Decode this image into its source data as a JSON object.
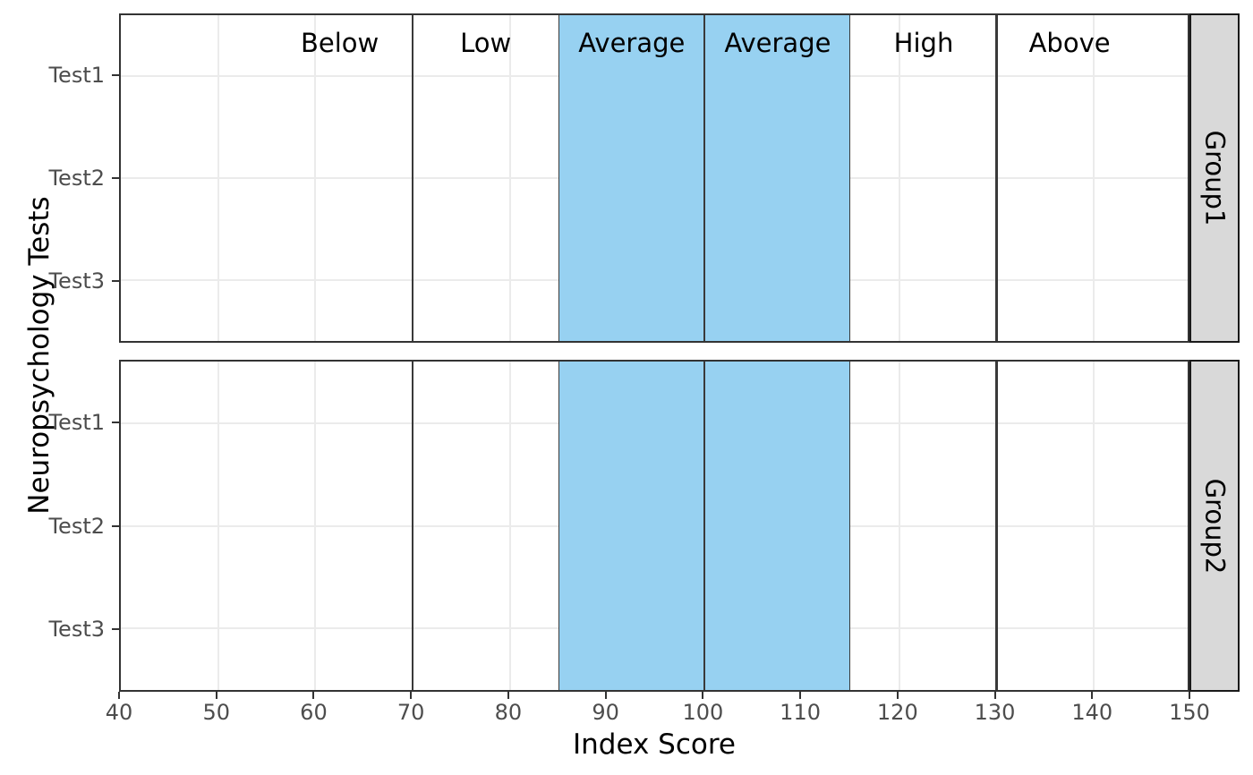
{
  "chart_data": {
    "type": "band-annotation",
    "title": "",
    "xlabel": "Index Score",
    "ylabel": "Neuropsychology Tests",
    "xlim": [
      40,
      150
    ],
    "x_ticks": [
      40,
      50,
      60,
      70,
      80,
      90,
      100,
      110,
      120,
      130,
      140,
      150
    ],
    "y_categories": [
      "Test1",
      "Test2",
      "Test3"
    ],
    "facets": [
      "Group1",
      "Group2"
    ],
    "grid": "major-only",
    "legend": "none",
    "vlines": [
      {
        "x": 70
      },
      {
        "x": 130
      }
    ],
    "bands": [
      {
        "x_from": 85,
        "x_to": 100,
        "label": "Average"
      },
      {
        "x_from": 100,
        "x_to": 115,
        "label": "Average"
      }
    ],
    "region_labels": [
      {
        "text": "Below",
        "x": 62.5
      },
      {
        "text": "Low",
        "x": 77.5
      },
      {
        "text": "Average",
        "x": 92.5
      },
      {
        "text": "Average",
        "x": 107.5
      },
      {
        "text": "High",
        "x": 122.5
      },
      {
        "text": "Above",
        "x": 137.5
      }
    ],
    "region_labels_facet": "Group1"
  },
  "colors": {
    "band_fill": "#97D1F1",
    "band_border": "#3a3a3a",
    "vline": "#3a3a3a",
    "grid": "#EBEBEB",
    "axis_text": "#4D4D4D",
    "panel_border": "#333333",
    "strip_fill": "#D9D9D9",
    "background": "#FFFFFF"
  }
}
